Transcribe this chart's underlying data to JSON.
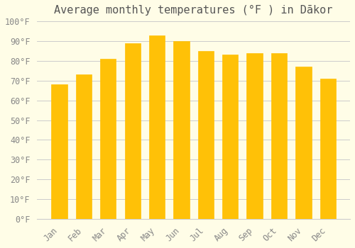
{
  "title": "Average monthly temperatures (°F ) in Dākor",
  "months": [
    "Jan",
    "Feb",
    "Mar",
    "Apr",
    "May",
    "Jun",
    "Jul",
    "Aug",
    "Sep",
    "Oct",
    "Nov",
    "Dec"
  ],
  "values": [
    68,
    73,
    81,
    89,
    93,
    90,
    85,
    83,
    84,
    84,
    77,
    71
  ],
  "bar_color_top": "#FFC107",
  "bar_color_bottom": "#FFB300",
  "background_color": "#FFFDE7",
  "grid_color": "#CCCCCC",
  "ylim": [
    0,
    100
  ],
  "yticks": [
    0,
    10,
    20,
    30,
    40,
    50,
    60,
    70,
    80,
    90,
    100
  ],
  "ytick_labels": [
    "0°F",
    "10°F",
    "20°F",
    "30°F",
    "40°F",
    "50°F",
    "60°F",
    "70°F",
    "80°F",
    "90°F",
    "100°F"
  ],
  "title_fontsize": 11,
  "tick_fontsize": 8.5
}
